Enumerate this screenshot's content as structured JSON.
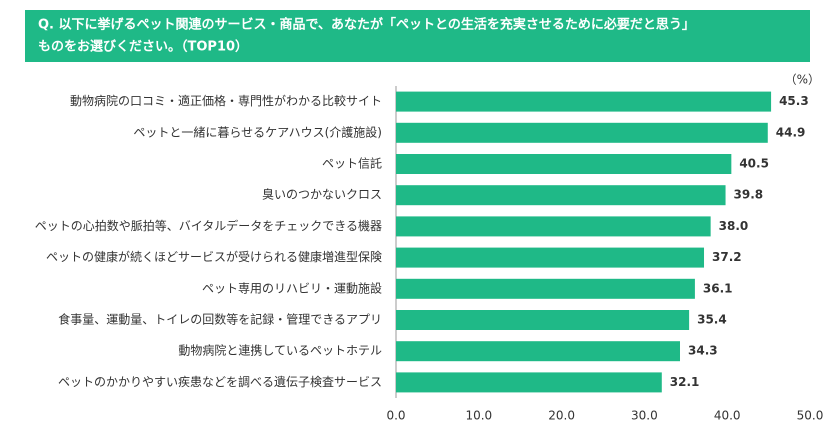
{
  "chart_data": {
    "type": "bar",
    "orientation": "horizontal",
    "title": [
      "Q. 以下に挙げるペット関連のサービス・商品で、あなたが「ペットとの生活を充実させるために必要だと思う」",
      "ものをお選びください。（TOP10）"
    ],
    "title_color": "#1fb987",
    "unit": "（%）",
    "categories": [
      "動物病院の口コミ・適正価格・専門性がわかる比較サイト",
      "ペットと一緒に暮らせるケアハウス(介護施設)",
      "ペット信託",
      "臭いのつかないクロス",
      "ペットの心拍数や脈拍等、バイタルデータをチェックできる機器",
      "ペットの健康が続くほどサービスが受けられる健康増進型保険",
      "ペット専用のリハビリ・運動施設",
      "食事量、運動量、トイレの回数等を記録・管理できるアプリ",
      "動物病院と連携しているペットホテル",
      "ペットのかかりやすい疾患などを調べる遺伝子検査サービス"
    ],
    "values": [
      45.3,
      44.9,
      40.5,
      39.8,
      38.0,
      37.2,
      36.1,
      35.4,
      34.3,
      32.1
    ],
    "value_labels": [
      "45.3",
      "44.9",
      "40.5",
      "39.8",
      "38.0",
      "37.2",
      "36.1",
      "35.4",
      "34.3",
      "32.1"
    ],
    "color": "#1fb987",
    "xlim": [
      0,
      50
    ],
    "xticks": [
      {
        "value": 0,
        "label": "0.0"
      },
      {
        "value": 10,
        "label": "10.0"
      },
      {
        "value": 20,
        "label": "20.0"
      },
      {
        "value": 30,
        "label": "30.0"
      },
      {
        "value": 40,
        "label": "40.0"
      },
      {
        "value": 50,
        "label": "50.0"
      }
    ],
    "grid": false
  }
}
